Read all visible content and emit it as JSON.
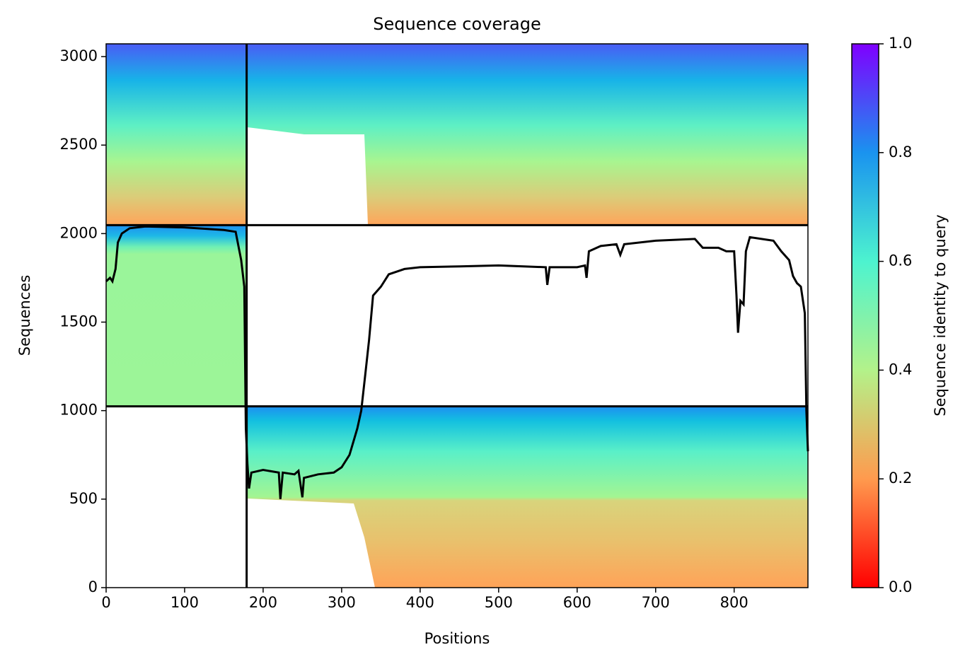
{
  "chart_data": {
    "type": "coverage",
    "title": "Sequence coverage",
    "xlabel": "Positions",
    "ylabel": "Sequences",
    "xlim": [
      0,
      894
    ],
    "ylim": [
      0,
      3072
    ],
    "xticks": [
      0,
      100,
      200,
      300,
      400,
      500,
      600,
      700,
      800
    ],
    "yticks": [
      0,
      500,
      1000,
      1500,
      2000,
      2500,
      3000
    ],
    "line_color": "#000000",
    "x": [
      0,
      5,
      8,
      12,
      15,
      20,
      30,
      50,
      100,
      150,
      165,
      172,
      176,
      178,
      180,
      182,
      185,
      200,
      220,
      222,
      225,
      240,
      245,
      250,
      252,
      270,
      290,
      300,
      310,
      320,
      325,
      330,
      335,
      340,
      350,
      360,
      380,
      400,
      450,
      500,
      560,
      562,
      565,
      600,
      610,
      612,
      615,
      630,
      650,
      655,
      660,
      700,
      750,
      760,
      780,
      790,
      800,
      803,
      805,
      808,
      812,
      815,
      820,
      850,
      860,
      870,
      875,
      880,
      885,
      890,
      892,
      894
    ],
    "values": [
      1730,
      1750,
      1730,
      1800,
      1950,
      2000,
      2030,
      2040,
      2035,
      2020,
      2010,
      1850,
      1700,
      900,
      700,
      560,
      650,
      665,
      650,
      500,
      650,
      640,
      660,
      510,
      620,
      640,
      650,
      680,
      750,
      900,
      1000,
      1200,
      1400,
      1650,
      1700,
      1770,
      1800,
      1810,
      1815,
      1820,
      1810,
      1710,
      1810,
      1810,
      1820,
      1750,
      1900,
      1930,
      1940,
      1880,
      1940,
      1960,
      1970,
      1920,
      1920,
      1900,
      1900,
      1650,
      1440,
      1620,
      1600,
      1900,
      1980,
      1960,
      1900,
      1850,
      1760,
      1720,
      1700,
      1550,
      1000,
      770
    ],
    "dividers": {
      "x": [
        179
      ],
      "y": [
        1024,
        2048
      ]
    },
    "blocks": [
      {
        "x": [
          0,
          179
        ],
        "y": [
          2048,
          3072
        ]
      },
      {
        "x": [
          179,
          894
        ],
        "y": [
          2048,
          3072
        ]
      },
      {
        "x": [
          0,
          179
        ],
        "y": [
          1024,
          2048
        ]
      },
      {
        "x": [
          179,
          894
        ],
        "y": [
          0,
          1024
        ]
      }
    ],
    "colorbar": {
      "label": "Sequence identity to query",
      "ylim": [
        0,
        1
      ],
      "yticks": [
        {
          "value": 0,
          "label": "0.0"
        },
        0.2,
        0.4,
        0.6,
        0.8,
        {
          "value": 1,
          "label": "1.0"
        }
      ]
    }
  }
}
